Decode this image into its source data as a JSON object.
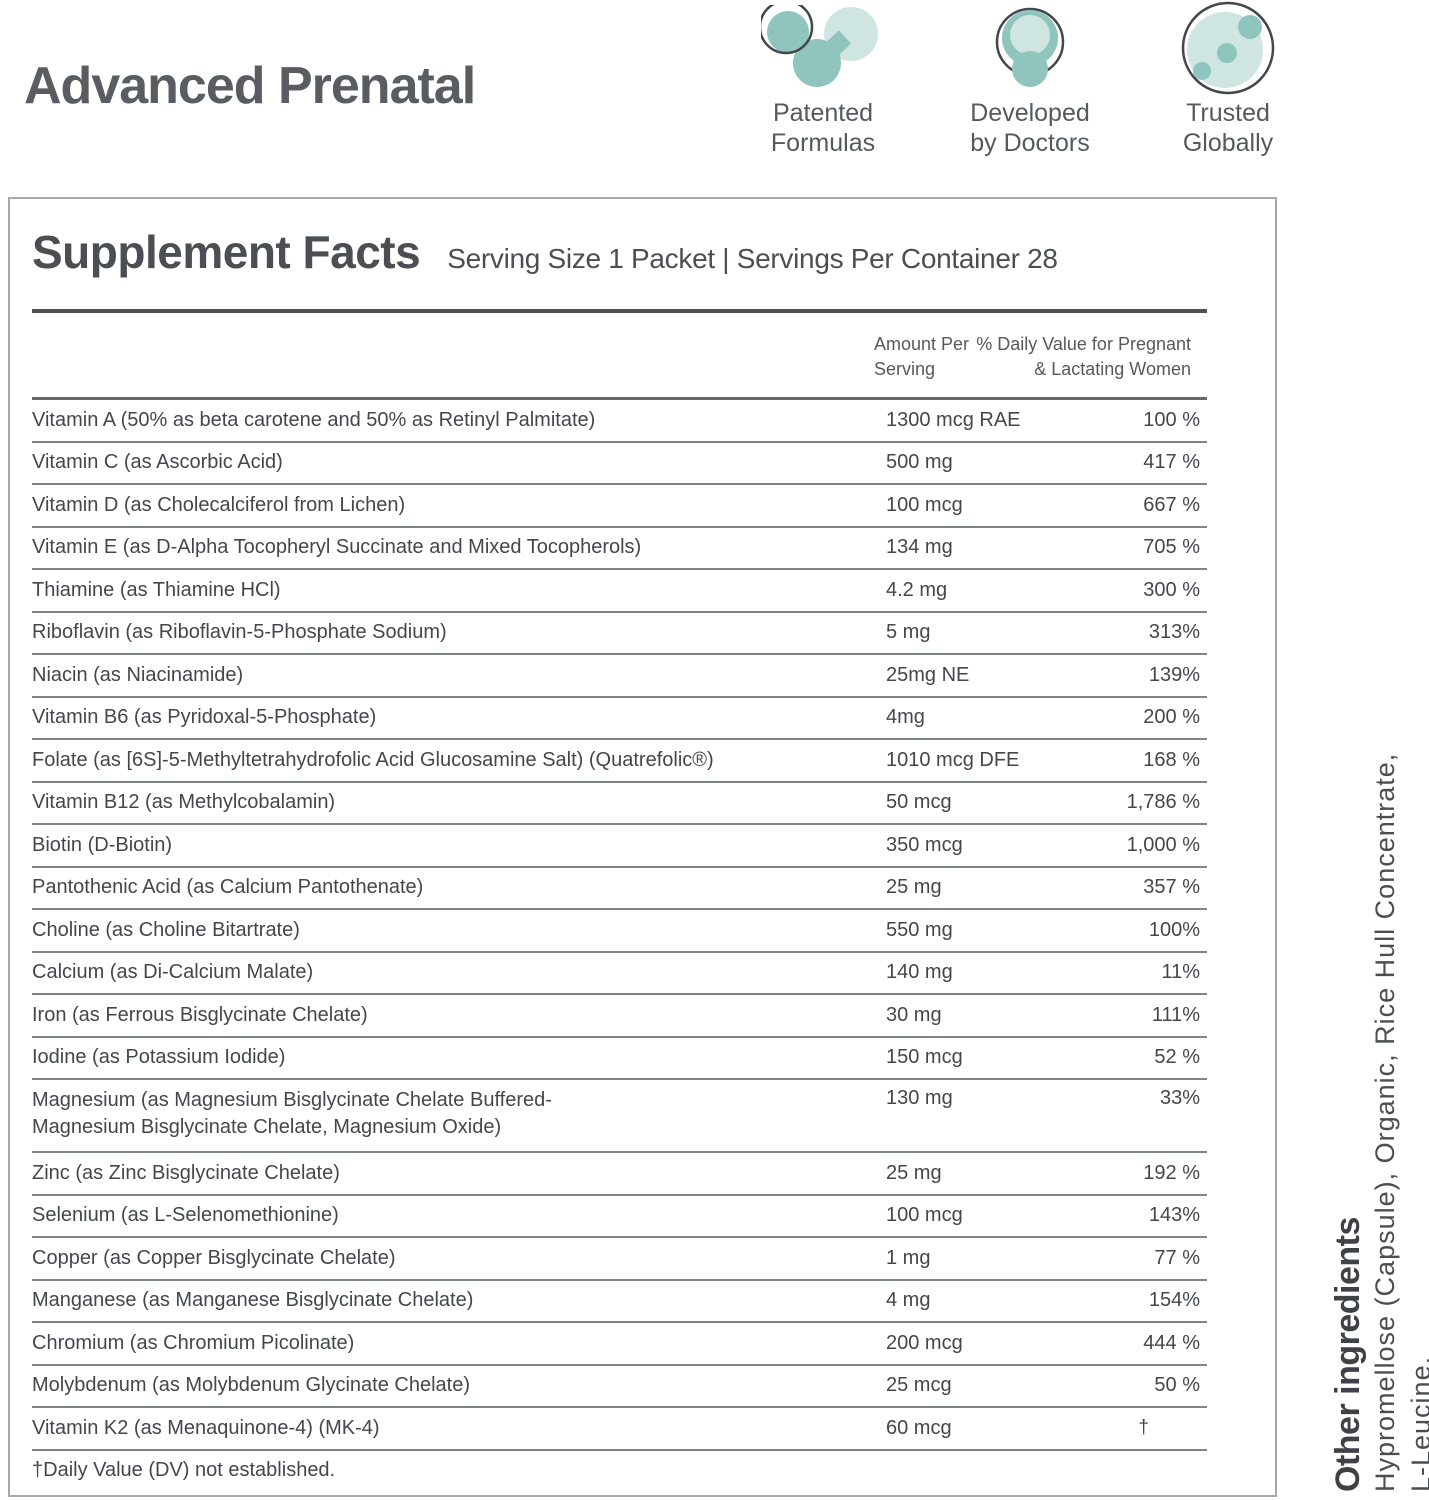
{
  "page": {
    "title": "Advanced Prenatal"
  },
  "badges": [
    {
      "icon": "molecule-icon",
      "label_line1": "Patented",
      "label_line2": "Formulas"
    },
    {
      "icon": "doctor-icon",
      "label_line1": "Developed",
      "label_line2": "by Doctors"
    },
    {
      "icon": "globe-icon",
      "label_line1": "Trusted",
      "label_line2": "Globally"
    }
  ],
  "panel": {
    "title": "Supplement Facts",
    "serving_info": "Serving Size 1 Packet | Servings Per Container 28",
    "columns": {
      "amount_line1": "Amount Per",
      "amount_line2": "Serving",
      "dv_line1": "% Daily Value for Pregnant",
      "dv_line2": "& Lactating Women"
    },
    "rows": [
      {
        "name": "Vitamin A (50% as beta carotene and 50% as Retinyl Palmitate)",
        "amount": "1300 mcg RAE",
        "dv": "100 %"
      },
      {
        "name": "Vitamin C (as Ascorbic Acid)",
        "amount": "500 mg",
        "dv": "417 %"
      },
      {
        "name": "Vitamin D (as Cholecalciferol from Lichen)",
        "amount": "100 mcg",
        "dv": "667 %"
      },
      {
        "name": "Vitamin E (as D-Alpha Tocopheryl Succinate and Mixed Tocopherols)",
        "amount": "134 mg",
        "dv": "705 %"
      },
      {
        "name": "Thiamine (as Thiamine HCl)",
        "amount": "4.2 mg",
        "dv": "300 %"
      },
      {
        "name": "Riboflavin (as Riboflavin-5-Phosphate Sodium)",
        "amount": "5 mg",
        "dv": "313%"
      },
      {
        "name": "Niacin (as Niacinamide)",
        "amount": "25mg NE",
        "dv": "139%"
      },
      {
        "name": "Vitamin B6 (as Pyridoxal-5-Phosphate)",
        "amount": "4mg",
        "dv": "200 %"
      },
      {
        "name": "Folate (as [6S]-5-Methyltetrahydrofolic Acid Glucosamine Salt) (Quatrefolic®)",
        "amount": "1010 mcg DFE",
        "dv": "168 %"
      },
      {
        "name": "Vitamin B12 (as Methylcobalamin)",
        "amount": "50 mcg",
        "dv": "1,786 %"
      },
      {
        "name": "Biotin (D-Biotin)",
        "amount": "350 mcg",
        "dv": "1,000 %"
      },
      {
        "name": "Pantothenic Acid (as Calcium Pantothenate)",
        "amount": "25 mg",
        "dv": "357 %"
      },
      {
        "name": "Choline (as Choline Bitartrate)",
        "amount": "550 mg",
        "dv": "100%"
      },
      {
        "name": "Calcium (as Di-Calcium Malate)",
        "amount": "140 mg",
        "dv": "11%"
      },
      {
        "name": "Iron (as Ferrous Bisglycinate Chelate)",
        "amount": "30 mg",
        "dv": "111%"
      },
      {
        "name": "Iodine (as Potassium Iodide)",
        "amount": "150 mcg",
        "dv": "52 %"
      },
      {
        "name": "Magnesium (as Magnesium Bisglycinate Chelate Buffered-",
        "name2": "Magnesium Bisglycinate Chelate, Magnesium Oxide)",
        "amount": "130 mg",
        "dv": "33%",
        "tall": true
      },
      {
        "name": "Zinc (as Zinc Bisglycinate Chelate)",
        "amount": "25 mg",
        "dv": "192 %"
      },
      {
        "name": "Selenium (as L-Selenomethionine)",
        "amount": "100 mcg",
        "dv": "143%"
      },
      {
        "name": "Copper (as Copper Bisglycinate Chelate)",
        "amount": "1 mg",
        "dv": "77 %"
      },
      {
        "name": "Manganese (as Manganese Bisglycinate Chelate)",
        "amount": "4 mg",
        "dv": "154%"
      },
      {
        "name": "Chromium (as Chromium Picolinate)",
        "amount": "200 mcg",
        "dv": "444 %"
      },
      {
        "name": "Molybdenum (as Molybdenum Glycinate Chelate)",
        "amount": "25 mcg",
        "dv": "50 %"
      },
      {
        "name": "Vitamin K2 (as Menaquinone-4) (MK-4)",
        "amount": "60 mcg",
        "dv": "†"
      }
    ],
    "footnote": "†Daily Value (DV) not established."
  },
  "sidebar": {
    "heading": "Other ingredients",
    "line1": "Hypromellose (Capsule), Organic, Rice Hull Concentrate,",
    "line2": "L-Leucine."
  },
  "colors": {
    "teal_medium": "#8fc5bc",
    "teal_light": "#cfe5e1",
    "icon_outline": "#42474c",
    "text_dark": "#43474b",
    "text_medium": "#55595d",
    "rule_dark": "#4b5054",
    "rule_gray": "#7e8386",
    "panel_border": "#a6a9ab"
  }
}
